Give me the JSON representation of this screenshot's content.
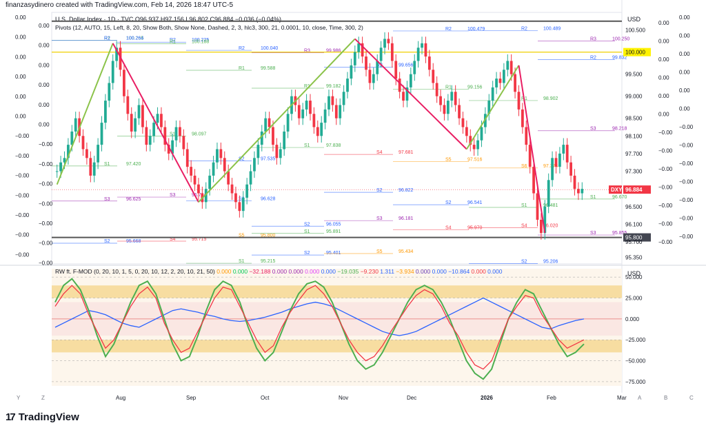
{
  "header": {
    "caption": "finanzasydinero created with TradingView.com, Feb 14, 2026 18:47 UTC-5"
  },
  "symbol": {
    "title": "U.S. Dollar Index · 1D · TVC",
    "ohlc": {
      "o_label": "O",
      "o": "96.937",
      "h_label": "H",
      "h": "97.156",
      "l_label": "L",
      "l": "96.802",
      "c_label": "C",
      "c": "96.884",
      "chg": "−0.036 (−0.04%)"
    },
    "ticker": "DXY",
    "last_price": "96.884"
  },
  "pivots_legend": "Pivots (12, AUTO, 15, Left, 8, 20, Show Both, Show None, Dashed, 2, 3, hlc3, 300, 21, 0.0001, 10, close, Time, 300, 2)",
  "indicator": {
    "legend_title": "RW ft. F-MOD (0, 20, 10, 1, 5, 0, 20, 10, 12, 2, 20, 10, 21, 50)",
    "legend_values": [
      {
        "v": "0.000",
        "c": "#ff9800"
      },
      {
        "v": "0.000",
        "c": "#00c853"
      },
      {
        "v": "−32.188",
        "c": "#e91e63"
      },
      {
        "v": "0.000",
        "c": "#9c27b0"
      },
      {
        "v": "0.000",
        "c": "#9c27b0"
      },
      {
        "v": "0.000",
        "c": "#e040fb"
      },
      {
        "v": "0.000",
        "c": "#2962ff"
      },
      {
        "v": "−19.035",
        "c": "#4caf50"
      },
      {
        "v": "−9.230",
        "c": "#f23645"
      },
      {
        "v": "1.311",
        "c": "#2962ff"
      },
      {
        "v": "−3.934",
        "c": "#ff9800"
      },
      {
        "v": "0.000",
        "c": "#673ab7"
      },
      {
        "v": "0.000",
        "c": "#2962ff"
      },
      {
        "v": "−10.864",
        "c": "#2962ff"
      },
      {
        "v": "0.000",
        "c": "#f23645"
      },
      {
        "v": "0.000",
        "c": "#2962ff"
      }
    ],
    "currency": "USD",
    "axis_ticks": [
      "50.000",
      "25.000",
      "0.000",
      "−25.000",
      "−50.000",
      "−75.000"
    ]
  },
  "price_axis": {
    "currency": "USD",
    "ticks": [
      "100.500",
      "100.000",
      "99.500",
      "99.000",
      "98.500",
      "98.100",
      "97.700",
      "97.300",
      "96.884",
      "96.500",
      "96.100",
      "95.800",
      "95.700",
      "95.350"
    ],
    "highlight": {
      "value": "100.000",
      "color": "#fff200"
    },
    "lowline": {
      "value": "95.800"
    }
  },
  "left_labels": [
    "0.00",
    "0.00",
    "0.00",
    "0.00",
    "0.00",
    "0.00",
    "−0.00",
    "−0.00",
    "−0.00",
    "−0.00",
    "−0.00",
    "−0.00",
    "−0.00"
  ],
  "right_zero_labels": [
    "0.00",
    "0.00",
    "0.00",
    "0.00",
    "0.00",
    "0.00",
    "−0.00",
    "−0.00",
    "−0.00",
    "−0.00",
    "−0.00",
    "−0.00",
    "−0.00"
  ],
  "time_axis": {
    "labels": [
      "Aug",
      "Sep",
      "Oct",
      "Nov",
      "Dec",
      "2026",
      "Feb",
      "Mar"
    ],
    "buttons": [
      "Y",
      "Z",
      "A",
      "B",
      "C"
    ]
  },
  "pivot_labels": [
    {
      "t": "R1",
      "v": "100.265"
    },
    {
      "t": "R2",
      "v": "100.225"
    },
    {
      "t": "R2",
      "v": "100.040"
    },
    {
      "t": "R3",
      "v": "99.986"
    },
    {
      "t": "R1",
      "v": "100.945"
    },
    {
      "t": "R2",
      "v": "100.479"
    },
    {
      "t": "R2",
      "v": "100.489"
    },
    {
      "t": "R3",
      "v": "100.250"
    },
    {
      "t": "R2",
      "v": "100.264"
    },
    {
      "t": "R1",
      "v": "100.188"
    },
    {
      "t": "R1",
      "v": "99.588"
    },
    {
      "t": "R1",
      "v": "99.182"
    },
    {
      "t": "R2",
      "v": "99.656"
    },
    {
      "t": "R1",
      "v": "99.156"
    },
    {
      "t": "R1",
      "v": "98.902"
    },
    {
      "t": "R2",
      "v": "99.832"
    },
    {
      "t": "S1",
      "v": "97.420"
    },
    {
      "t": "S1",
      "v": "98.097"
    },
    {
      "t": "S2",
      "v": "97.535"
    },
    {
      "t": "S1",
      "v": "97.838"
    },
    {
      "t": "S2",
      "v": "96.822"
    },
    {
      "t": "S2",
      "v": "96.541"
    },
    {
      "t": "S1",
      "v": "96.481"
    },
    {
      "t": "S1",
      "v": "96.670"
    },
    {
      "t": "S3",
      "v": "96.625"
    },
    {
      "t": "S3",
      "v": "96.714"
    },
    {
      "t": "S2",
      "v": "96.628"
    },
    {
      "t": "S2",
      "v": "96.055"
    },
    {
      "t": "S3",
      "v": "96.181"
    },
    {
      "t": "S4",
      "v": "95.970"
    },
    {
      "t": "S4",
      "v": "96.020"
    },
    {
      "t": "S3",
      "v": "95.855"
    },
    {
      "t": "S2",
      "v": "95.668"
    },
    {
      "t": "S4",
      "v": "95.715"
    },
    {
      "t": "S5",
      "v": "95.800"
    },
    {
      "t": "S2",
      "v": "95.401"
    },
    {
      "t": "S5",
      "v": "95.434"
    },
    {
      "t": "S3",
      "v": "95.008"
    },
    {
      "t": "S2",
      "v": "95.206"
    },
    {
      "t": "S3",
      "v": "95.119"
    },
    {
      "t": "S3",
      "v": "95.132"
    },
    {
      "t": "S6",
      "v": "95.153"
    },
    {
      "t": "S1",
      "v": "95.215"
    },
    {
      "t": "S1",
      "v": "95.891"
    },
    {
      "t": "S4",
      "v": "97.681"
    },
    {
      "t": "S5",
      "v": "97.516"
    },
    {
      "t": "S6",
      "v": "97.374"
    },
    {
      "t": "S3",
      "v": "98.218"
    }
  ],
  "chart_data": {
    "type": "candlestick",
    "series": [
      {
        "name": "U.S. Dollar Index",
        "values": [
          97.3,
          97.5,
          97.6,
          97.9,
          98.2,
          98.5,
          98.1,
          97.8,
          97.6,
          97.2,
          97.5,
          97.9,
          98.4,
          98.9,
          99.3,
          99.8,
          100.1,
          99.6,
          99.0,
          98.6,
          98.2,
          98.5,
          98.8,
          98.3,
          97.9,
          98.1,
          98.4,
          98.6,
          98.3,
          97.9,
          97.7,
          98.0,
          98.3,
          98.1,
          97.8,
          97.4,
          97.2,
          97.0,
          96.8,
          96.6,
          96.9,
          97.2,
          97.5,
          97.8,
          97.6,
          97.3,
          97.0,
          96.8,
          96.6,
          96.4,
          96.7,
          97.0,
          97.3,
          97.6,
          97.9,
          98.2,
          98.5,
          98.3,
          97.9,
          97.6,
          97.8,
          98.2,
          98.6,
          99.0,
          98.8,
          98.5,
          98.7,
          98.9,
          98.6,
          98.3,
          98.1,
          98.4,
          98.7,
          99.0,
          98.8,
          98.5,
          98.8,
          99.1,
          99.4,
          99.7,
          100.0,
          100.2,
          99.9,
          99.6,
          99.3,
          99.5,
          99.8,
          100.1,
          100.3,
          100.2,
          99.8,
          99.4,
          99.1,
          98.9,
          99.2,
          99.5,
          99.8,
          100.1,
          100.2,
          99.9,
          99.6,
          99.3,
          99.0,
          98.8,
          98.6,
          98.9,
          99.1,
          98.8,
          98.5,
          98.3,
          98.1,
          97.9,
          97.8,
          98.0,
          98.3,
          98.6,
          98.9,
          99.2,
          99.4,
          99.3,
          99.6,
          99.8,
          99.5,
          99.1,
          98.7,
          98.3,
          97.9,
          97.4,
          96.8,
          96.2,
          95.9,
          96.5,
          97.1,
          97.6,
          97.4,
          97.7,
          97.9,
          97.5,
          97.2,
          96.9,
          96.8,
          96.9
        ]
      },
      {
        "name": "Pivot zigzag",
        "values": [
          {
            "x": 0,
            "y": 97.0
          },
          {
            "x": 15,
            "y": 100.2
          },
          {
            "x": 38,
            "y": 96.6
          },
          {
            "x": 80,
            "y": 100.3
          },
          {
            "x": 110,
            "y": 97.8
          },
          {
            "x": 124,
            "y": 99.7
          },
          {
            "x": 131,
            "y": 95.9
          }
        ]
      }
    ],
    "y_range": [
      95.2,
      100.9
    ],
    "x_labels": [
      "Aug",
      "Sep",
      "Oct",
      "Nov",
      "Dec",
      "2026",
      "Feb",
      "Mar"
    ],
    "oscillator": {
      "range": [
        -80,
        60
      ],
      "zero": 0,
      "bands": [
        {
          "from": 25,
          "to": 40
        },
        {
          "from": -25,
          "to": -40
        }
      ],
      "lines": [
        {
          "name": "blue",
          "values": [
            -10,
            -5,
            0,
            5,
            10,
            8,
            5,
            0,
            -5,
            -8,
            -10,
            -5,
            0,
            5,
            10,
            12,
            10,
            8,
            5,
            3,
            0,
            -2,
            -3,
            -2,
            0,
            2,
            5,
            8,
            12,
            15,
            18,
            20,
            18,
            15,
            10,
            5,
            0,
            -5,
            -10,
            -15,
            -18,
            -20,
            -18,
            -15,
            -10,
            -5,
            0,
            5,
            10,
            15,
            20,
            25,
            20,
            15,
            10,
            5,
            0,
            -5,
            -10,
            -12,
            -8,
            -5,
            -2,
            0
          ]
        },
        {
          "name": "green",
          "values": [
            20,
            40,
            48,
            35,
            10,
            -20,
            -45,
            -30,
            -5,
            20,
            40,
            45,
            30,
            0,
            -30,
            -50,
            -45,
            -20,
            10,
            35,
            45,
            40,
            20,
            -10,
            -35,
            -50,
            -40,
            -15,
            10,
            30,
            42,
            45,
            38,
            20,
            -5,
            -30,
            -50,
            -60,
            -55,
            -40,
            -20,
            0,
            20,
            35,
            40,
            35,
            20,
            0,
            -25,
            -50,
            -65,
            -72,
            -60,
            -30,
            0,
            20,
            35,
            30,
            10,
            -10,
            -30,
            -45,
            -40,
            -30
          ]
        },
        {
          "name": "red",
          "values": [
            15,
            30,
            40,
            30,
            5,
            -15,
            -35,
            -25,
            -5,
            15,
            30,
            38,
            25,
            -5,
            -25,
            -40,
            -35,
            -15,
            5,
            25,
            38,
            35,
            15,
            -5,
            -25,
            -40,
            -32,
            -10,
            8,
            22,
            35,
            40,
            30,
            15,
            -5,
            -25,
            -40,
            -50,
            -45,
            -32,
            -15,
            0,
            15,
            28,
            35,
            30,
            15,
            -5,
            -20,
            -40,
            -55,
            -60,
            -50,
            -25,
            0,
            15,
            28,
            25,
            5,
            -10,
            -25,
            -35,
            -30,
            -25
          ]
        }
      ]
    }
  }
}
